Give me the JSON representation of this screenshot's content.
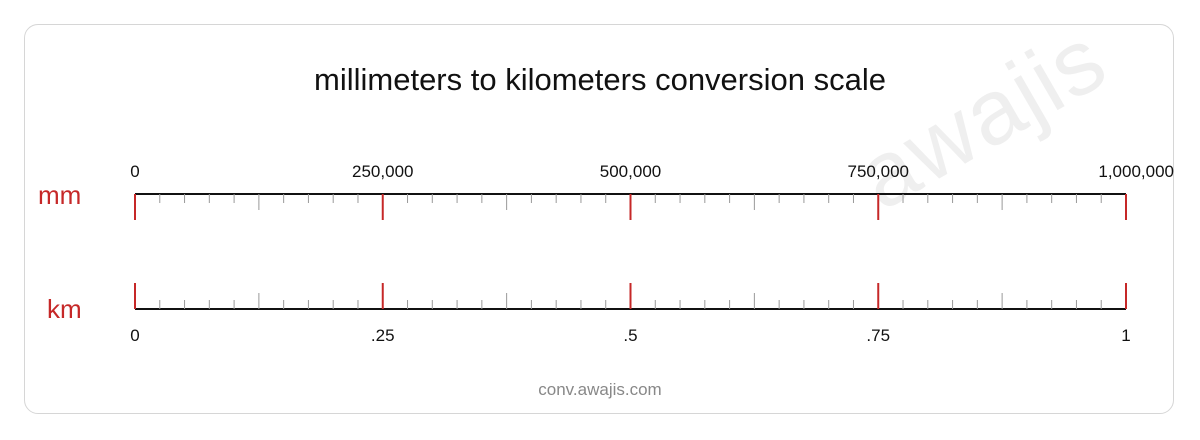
{
  "title": "millimeters to kilometers conversion scale",
  "watermark": "awajis",
  "footer": "conv.awajis.com",
  "colors": {
    "major_tick": "#c62828",
    "minor_tick": "#999999",
    "axis": "#111111",
    "unit_label": "#c62828"
  },
  "scales": {
    "top": {
      "unit": "mm",
      "labels": [
        "0",
        "250,000",
        "500,000",
        "750,000",
        "1,000,000"
      ],
      "values": [
        0,
        250000,
        500000,
        750000,
        1000000
      ]
    },
    "bottom": {
      "unit": "km",
      "labels": [
        "0",
        ".25",
        ".5",
        ".75",
        "1"
      ],
      "values": [
        0,
        0.25,
        0.5,
        0.75,
        1
      ]
    }
  }
}
